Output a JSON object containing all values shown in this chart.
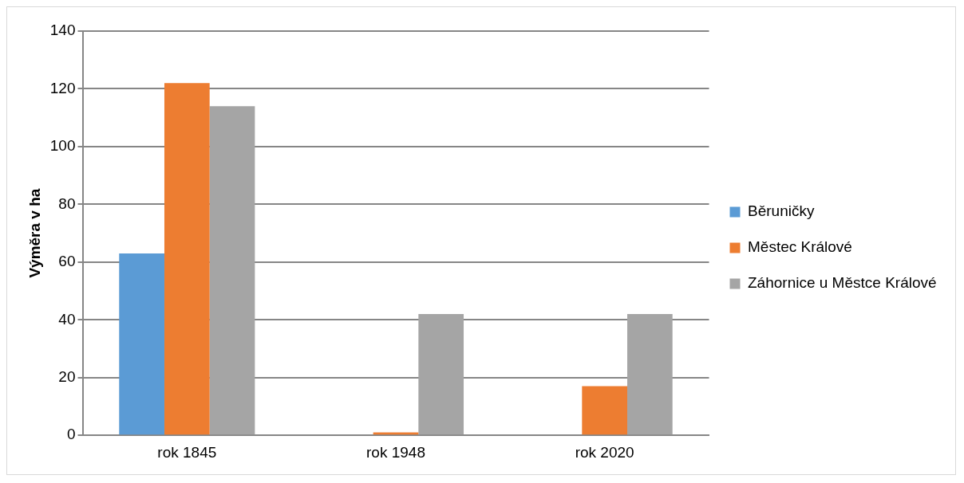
{
  "chart_data": {
    "type": "bar",
    "ylabel": "Výměra v ha",
    "categories": [
      "rok 1845",
      "rok 1948",
      "rok 2020"
    ],
    "series": [
      {
        "name": "Běruničky",
        "color": "#5b9bd5",
        "values": [
          63,
          0,
          0
        ]
      },
      {
        "name": "Městec Králové",
        "color": "#ed7d31",
        "values": [
          122,
          1,
          17
        ]
      },
      {
        "name": "Záhornice u Městce Králové",
        "color": "#a5a5a5",
        "values": [
          114,
          42,
          42
        ]
      }
    ],
    "ylim": [
      0,
      140
    ],
    "yticks": [
      0,
      20,
      40,
      60,
      80,
      100,
      120,
      140
    ],
    "grid": "y",
    "legend": "right"
  }
}
